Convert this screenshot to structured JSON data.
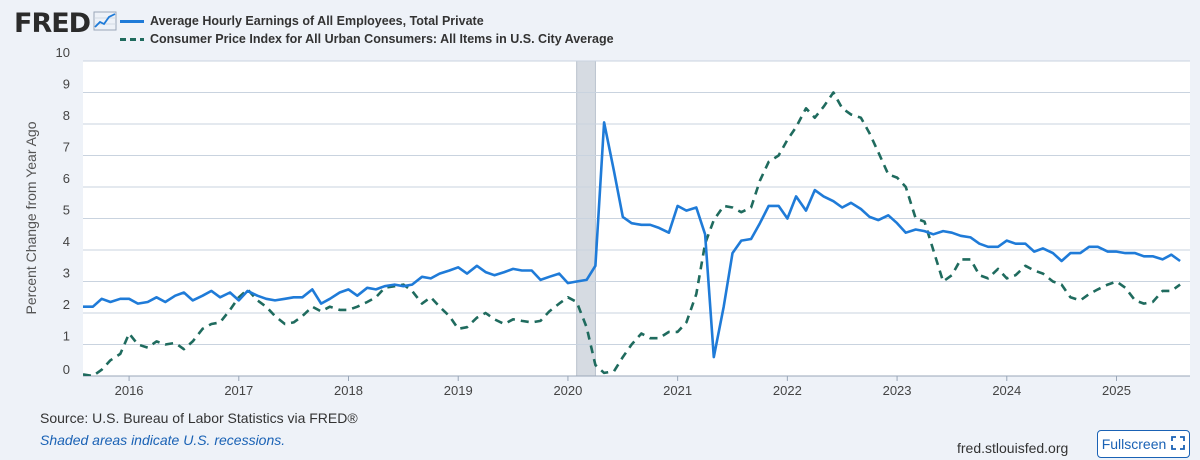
{
  "brand": {
    "logo_text": "FRED",
    "logo_icon": "chart-line-icon"
  },
  "legend": [
    {
      "label": "Average Hourly Earnings of All Employees, Total Private",
      "style": "solid"
    },
    {
      "label": "Consumer Price Index for All Urban Consumers: All Items in U.S. City Average",
      "style": "dashed"
    }
  ],
  "chart_data": {
    "type": "line",
    "ylabel": "Percent Change from Year Ago",
    "xlabel": "",
    "title": "",
    "ylim": [
      0,
      10
    ],
    "xlim": [
      2015.58,
      2025.67
    ],
    "x_ticks": [
      "2016",
      "2017",
      "2018",
      "2019",
      "2020",
      "2021",
      "2022",
      "2023",
      "2024",
      "2025"
    ],
    "y_ticks": [
      "0",
      "1",
      "2",
      "3",
      "4",
      "5",
      "6",
      "7",
      "8",
      "9",
      "10"
    ],
    "grid": true,
    "legend_position": "top-left",
    "recession": [
      2020.08,
      2020.25
    ],
    "colors": {
      "earnings": "#1f7bd8",
      "cpi": "#1f6b5e",
      "recession": "#d6dbe2",
      "grid": "#c9d3df"
    },
    "series": [
      {
        "name": "Average Hourly Earnings of All Employees, Total Private",
        "style": "solid",
        "points": [
          [
            2015.58,
            2.2
          ],
          [
            2015.67,
            2.2
          ],
          [
            2015.75,
            2.45
          ],
          [
            2015.83,
            2.35
          ],
          [
            2015.92,
            2.45
          ],
          [
            2016.0,
            2.45
          ],
          [
            2016.08,
            2.3
          ],
          [
            2016.17,
            2.35
          ],
          [
            2016.25,
            2.5
          ],
          [
            2016.33,
            2.35
          ],
          [
            2016.42,
            2.55
          ],
          [
            2016.5,
            2.65
          ],
          [
            2016.58,
            2.4
          ],
          [
            2016.67,
            2.55
          ],
          [
            2016.75,
            2.7
          ],
          [
            2016.83,
            2.5
          ],
          [
            2016.92,
            2.65
          ],
          [
            2017.0,
            2.4
          ],
          [
            2017.08,
            2.7
          ],
          [
            2017.17,
            2.55
          ],
          [
            2017.25,
            2.45
          ],
          [
            2017.33,
            2.4
          ],
          [
            2017.42,
            2.45
          ],
          [
            2017.5,
            2.5
          ],
          [
            2017.58,
            2.5
          ],
          [
            2017.67,
            2.75
          ],
          [
            2017.75,
            2.3
          ],
          [
            2017.83,
            2.45
          ],
          [
            2017.92,
            2.65
          ],
          [
            2018.0,
            2.75
          ],
          [
            2018.08,
            2.55
          ],
          [
            2018.17,
            2.8
          ],
          [
            2018.25,
            2.75
          ],
          [
            2018.33,
            2.85
          ],
          [
            2018.42,
            2.9
          ],
          [
            2018.5,
            2.85
          ],
          [
            2018.58,
            2.9
          ],
          [
            2018.67,
            3.15
          ],
          [
            2018.75,
            3.1
          ],
          [
            2018.83,
            3.25
          ],
          [
            2018.92,
            3.35
          ],
          [
            2019.0,
            3.45
          ],
          [
            2019.08,
            3.25
          ],
          [
            2019.17,
            3.5
          ],
          [
            2019.25,
            3.3
          ],
          [
            2019.33,
            3.2
          ],
          [
            2019.42,
            3.3
          ],
          [
            2019.5,
            3.4
          ],
          [
            2019.58,
            3.35
          ],
          [
            2019.67,
            3.35
          ],
          [
            2019.75,
            3.05
          ],
          [
            2019.83,
            3.15
          ],
          [
            2019.92,
            3.25
          ],
          [
            2020.0,
            2.95
          ],
          [
            2020.08,
            3.0
          ],
          [
            2020.17,
            3.05
          ],
          [
            2020.25,
            3.5
          ],
          [
            2020.33,
            8.05
          ],
          [
            2020.42,
            6.5
          ],
          [
            2020.5,
            5.05
          ],
          [
            2020.58,
            4.85
          ],
          [
            2020.67,
            4.8
          ],
          [
            2020.75,
            4.8
          ],
          [
            2020.83,
            4.7
          ],
          [
            2020.92,
            4.55
          ],
          [
            2021.0,
            5.4
          ],
          [
            2021.08,
            5.25
          ],
          [
            2021.17,
            5.35
          ],
          [
            2021.25,
            4.5
          ],
          [
            2021.33,
            0.6
          ],
          [
            2021.42,
            2.2
          ],
          [
            2021.5,
            3.9
          ],
          [
            2021.58,
            4.3
          ],
          [
            2021.67,
            4.35
          ],
          [
            2021.75,
            4.85
          ],
          [
            2021.83,
            5.4
          ],
          [
            2021.92,
            5.4
          ],
          [
            2022.0,
            5.0
          ],
          [
            2022.08,
            5.7
          ],
          [
            2022.17,
            5.25
          ],
          [
            2022.25,
            5.9
          ],
          [
            2022.33,
            5.7
          ],
          [
            2022.42,
            5.55
          ],
          [
            2022.5,
            5.35
          ],
          [
            2022.58,
            5.5
          ],
          [
            2022.67,
            5.3
          ],
          [
            2022.75,
            5.05
          ],
          [
            2022.83,
            4.95
          ],
          [
            2022.92,
            5.1
          ],
          [
            2023.0,
            4.85
          ],
          [
            2023.08,
            4.55
          ],
          [
            2023.17,
            4.65
          ],
          [
            2023.25,
            4.6
          ],
          [
            2023.33,
            4.5
          ],
          [
            2023.42,
            4.6
          ],
          [
            2023.5,
            4.55
          ],
          [
            2023.58,
            4.45
          ],
          [
            2023.67,
            4.4
          ],
          [
            2023.75,
            4.2
          ],
          [
            2023.83,
            4.1
          ],
          [
            2023.92,
            4.1
          ],
          [
            2024.0,
            4.3
          ],
          [
            2024.08,
            4.2
          ],
          [
            2024.17,
            4.2
          ],
          [
            2024.25,
            3.95
          ],
          [
            2024.33,
            4.05
          ],
          [
            2024.42,
            3.9
          ],
          [
            2024.5,
            3.65
          ],
          [
            2024.58,
            3.9
          ],
          [
            2024.67,
            3.9
          ],
          [
            2024.75,
            4.1
          ],
          [
            2024.83,
            4.1
          ],
          [
            2024.92,
            3.95
          ],
          [
            2025.0,
            3.95
          ],
          [
            2025.08,
            3.9
          ],
          [
            2025.17,
            3.9
          ],
          [
            2025.25,
            3.8
          ],
          [
            2025.33,
            3.8
          ],
          [
            2025.42,
            3.7
          ],
          [
            2025.5,
            3.85
          ],
          [
            2025.58,
            3.65
          ]
        ]
      },
      {
        "name": "Consumer Price Index for All Urban Consumers: All Items in U.S. City Average",
        "style": "dashed",
        "points": [
          [
            2015.58,
            0.05
          ],
          [
            2015.67,
            0.0
          ],
          [
            2015.75,
            0.2
          ],
          [
            2015.83,
            0.5
          ],
          [
            2015.92,
            0.7
          ],
          [
            2016.0,
            1.35
          ],
          [
            2016.08,
            1.0
          ],
          [
            2016.17,
            0.9
          ],
          [
            2016.25,
            1.1
          ],
          [
            2016.33,
            1.0
          ],
          [
            2016.42,
            1.05
          ],
          [
            2016.5,
            0.85
          ],
          [
            2016.58,
            1.1
          ],
          [
            2016.67,
            1.5
          ],
          [
            2016.75,
            1.65
          ],
          [
            2016.83,
            1.7
          ],
          [
            2016.92,
            2.1
          ],
          [
            2017.0,
            2.5
          ],
          [
            2017.08,
            2.75
          ],
          [
            2017.17,
            2.4
          ],
          [
            2017.25,
            2.2
          ],
          [
            2017.33,
            1.9
          ],
          [
            2017.42,
            1.65
          ],
          [
            2017.5,
            1.7
          ],
          [
            2017.58,
            1.9
          ],
          [
            2017.67,
            2.2
          ],
          [
            2017.75,
            2.05
          ],
          [
            2017.83,
            2.2
          ],
          [
            2017.92,
            2.1
          ],
          [
            2018.0,
            2.1
          ],
          [
            2018.08,
            2.2
          ],
          [
            2018.17,
            2.35
          ],
          [
            2018.25,
            2.5
          ],
          [
            2018.33,
            2.8
          ],
          [
            2018.42,
            2.85
          ],
          [
            2018.5,
            2.9
          ],
          [
            2018.58,
            2.7
          ],
          [
            2018.67,
            2.3
          ],
          [
            2018.75,
            2.5
          ],
          [
            2018.83,
            2.2
          ],
          [
            2018.92,
            1.9
          ],
          [
            2019.0,
            1.5
          ],
          [
            2019.08,
            1.55
          ],
          [
            2019.17,
            1.85
          ],
          [
            2019.25,
            2.0
          ],
          [
            2019.33,
            1.8
          ],
          [
            2019.42,
            1.65
          ],
          [
            2019.5,
            1.8
          ],
          [
            2019.58,
            1.75
          ],
          [
            2019.67,
            1.7
          ],
          [
            2019.75,
            1.75
          ],
          [
            2019.83,
            2.05
          ],
          [
            2019.92,
            2.3
          ],
          [
            2020.0,
            2.5
          ],
          [
            2020.08,
            2.35
          ],
          [
            2020.17,
            1.55
          ],
          [
            2020.25,
            0.35
          ],
          [
            2020.33,
            0.1
          ],
          [
            2020.42,
            0.15
          ],
          [
            2020.5,
            0.6
          ],
          [
            2020.58,
            1.0
          ],
          [
            2020.67,
            1.35
          ],
          [
            2020.75,
            1.2
          ],
          [
            2020.83,
            1.2
          ],
          [
            2020.92,
            1.4
          ],
          [
            2021.0,
            1.4
          ],
          [
            2021.08,
            1.7
          ],
          [
            2021.17,
            2.6
          ],
          [
            2021.25,
            4.2
          ],
          [
            2021.33,
            4.95
          ],
          [
            2021.42,
            5.4
          ],
          [
            2021.5,
            5.35
          ],
          [
            2021.58,
            5.2
          ],
          [
            2021.67,
            5.35
          ],
          [
            2021.75,
            6.2
          ],
          [
            2021.83,
            6.8
          ],
          [
            2021.92,
            7.0
          ],
          [
            2022.0,
            7.5
          ],
          [
            2022.08,
            7.9
          ],
          [
            2022.17,
            8.5
          ],
          [
            2022.25,
            8.2
          ],
          [
            2022.33,
            8.55
          ],
          [
            2022.42,
            9.0
          ],
          [
            2022.5,
            8.5
          ],
          [
            2022.58,
            8.3
          ],
          [
            2022.67,
            8.2
          ],
          [
            2022.75,
            7.7
          ],
          [
            2022.83,
            7.1
          ],
          [
            2022.92,
            6.4
          ],
          [
            2023.0,
            6.3
          ],
          [
            2023.08,
            6.0
          ],
          [
            2023.17,
            5.0
          ],
          [
            2023.25,
            4.9
          ],
          [
            2023.33,
            4.0
          ],
          [
            2023.42,
            3.0
          ],
          [
            2023.5,
            3.2
          ],
          [
            2023.58,
            3.7
          ],
          [
            2023.67,
            3.7
          ],
          [
            2023.75,
            3.2
          ],
          [
            2023.83,
            3.1
          ],
          [
            2023.92,
            3.4
          ],
          [
            2024.0,
            3.1
          ],
          [
            2024.08,
            3.2
          ],
          [
            2024.17,
            3.5
          ],
          [
            2024.25,
            3.35
          ],
          [
            2024.33,
            3.25
          ],
          [
            2024.42,
            3.0
          ],
          [
            2024.5,
            2.9
          ],
          [
            2024.58,
            2.5
          ],
          [
            2024.67,
            2.4
          ],
          [
            2024.75,
            2.6
          ],
          [
            2024.83,
            2.75
          ],
          [
            2024.92,
            2.9
          ],
          [
            2025.0,
            3.0
          ],
          [
            2025.08,
            2.8
          ],
          [
            2025.17,
            2.4
          ],
          [
            2025.25,
            2.3
          ],
          [
            2025.33,
            2.35
          ],
          [
            2025.42,
            2.7
          ],
          [
            2025.5,
            2.7
          ],
          [
            2025.58,
            2.9
          ]
        ]
      }
    ]
  },
  "footer": {
    "source": "Source: U.S. Bureau of Labor Statistics via FRED®",
    "recession_note": "Shaded areas indicate U.S. recessions.",
    "site": "fred.stlouisfed.org",
    "fullscreen_label": "Fullscreen"
  }
}
